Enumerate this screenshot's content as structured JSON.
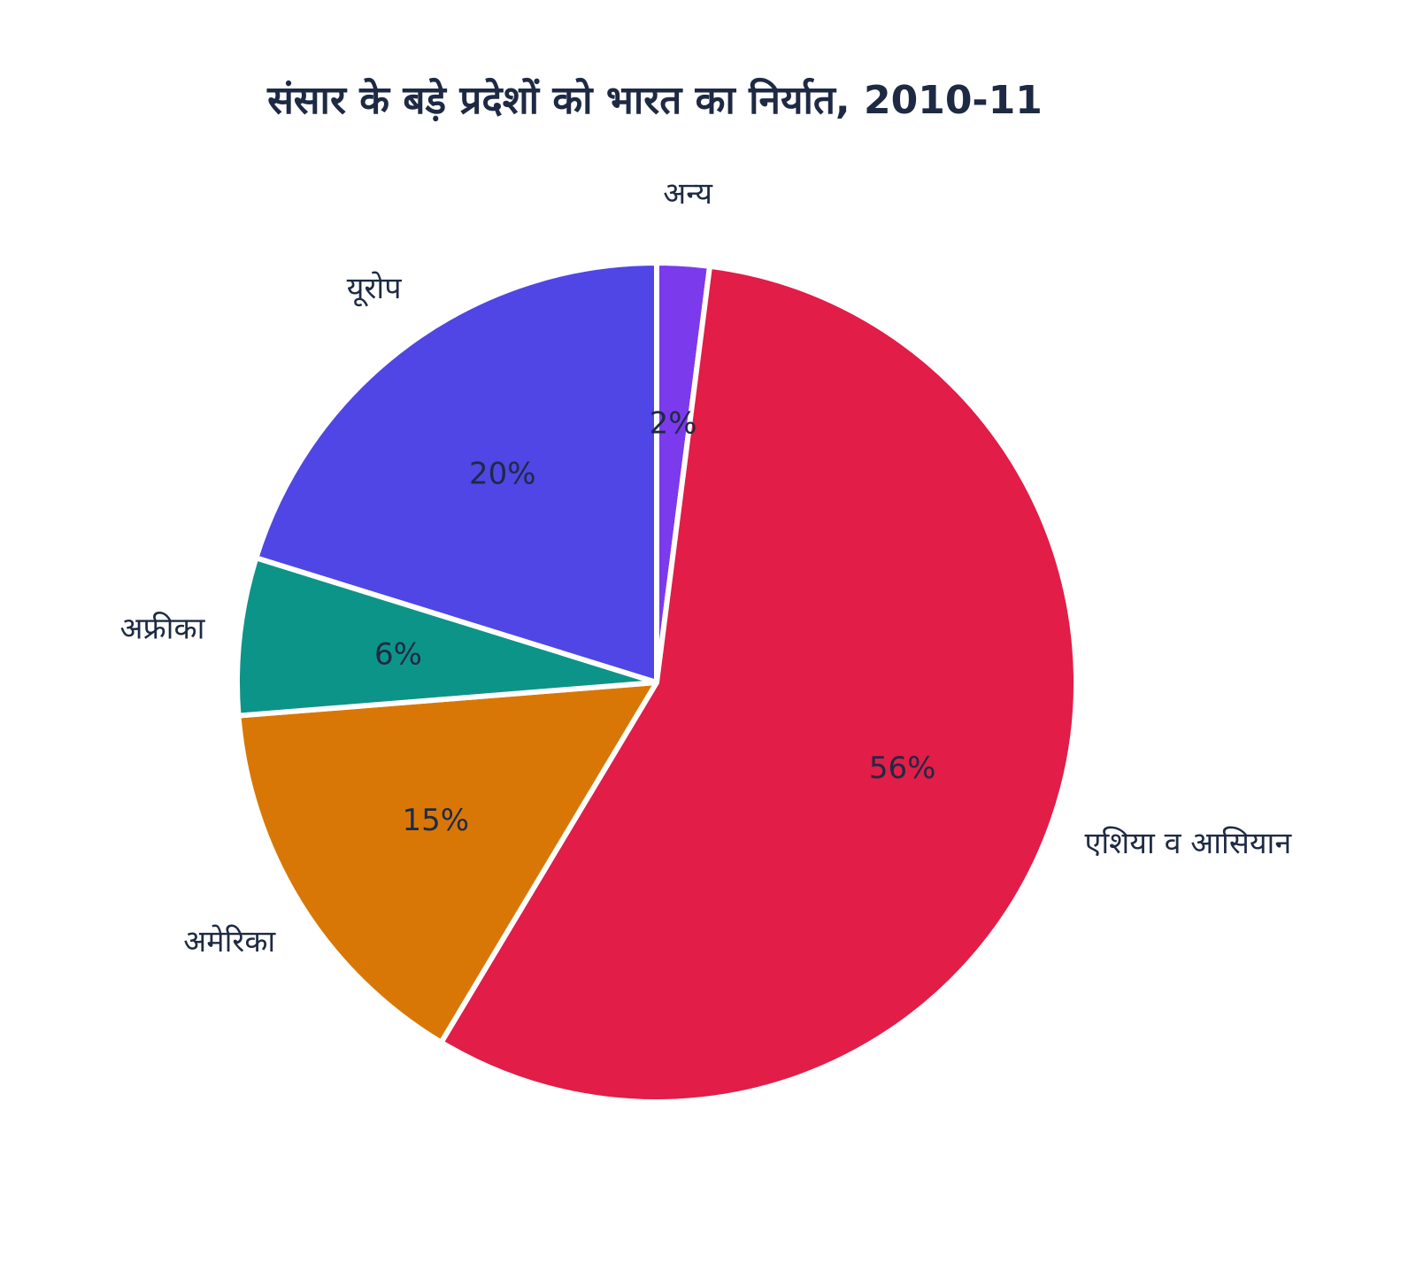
{
  "chart_data": {
    "type": "pie",
    "title": "संसार के बड़े प्रदेशों को भारत का निर्यात, 2010-11",
    "unit": "%",
    "slices": [
      {
        "label": "अन्य",
        "value": 2,
        "label_text": "2%",
        "color": "#7c3aed"
      },
      {
        "label": "एशिया व आसियान",
        "value": 56,
        "label_text": "56%",
        "color": "#e11d48"
      },
      {
        "label": "अमेरिका",
        "value": 15,
        "label_text": "15%",
        "color": "#d97706"
      },
      {
        "label": "अफ्रीका",
        "value": 6,
        "label_text": "6%",
        "color": "#0d9488"
      },
      {
        "label": "यूरोप",
        "value": 20,
        "label_text": "20%",
        "color": "#4f46e5"
      }
    ],
    "start_angle": "12 o'clock",
    "direction": "clockwise",
    "legend": "none"
  }
}
